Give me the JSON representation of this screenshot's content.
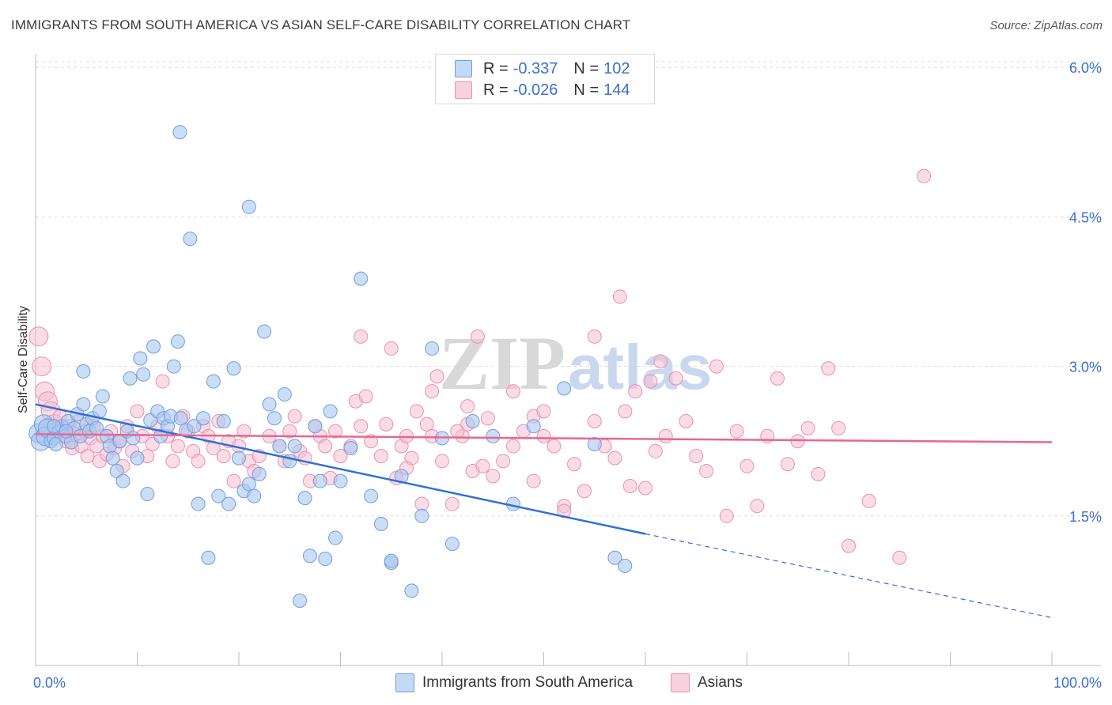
{
  "title": "IMMIGRANTS FROM SOUTH AMERICA VS ASIAN SELF-CARE DISABILITY CORRELATION CHART",
  "source": "Source: ZipAtlas.com",
  "watermark": {
    "zip": "ZIP",
    "atlas": "atlas"
  },
  "legend": {
    "r_label": "R =",
    "n_label": "N =",
    "rows": [
      {
        "r": "-0.337",
        "n": "102"
      },
      {
        "r": "-0.026",
        "n": "144"
      }
    ]
  },
  "colors": {
    "blue_fill": "#aac6f0",
    "blue_stroke": "#6f9de0",
    "blue_line": "#2f6fd6",
    "pink_fill": "#f6bfd1",
    "pink_stroke": "#ec8fae",
    "pink_line": "#e8678f",
    "axis_tick_color": "#3b6fd1",
    "grid": "#dddddd"
  },
  "chart_data": {
    "type": "scatter",
    "xlabel": "",
    "ylabel": "Self-Care Disability",
    "xlim": [
      0,
      100
    ],
    "ylim": [
      0,
      6.2
    ],
    "x_tick_labels": [
      "0.0%",
      "100.0%"
    ],
    "y_ticks": [
      1.5,
      3.0,
      4.5,
      6.0
    ],
    "y_tick_labels": [
      "1.5%",
      "3.0%",
      "4.5%",
      "6.0%"
    ],
    "grid": true,
    "legend_placement": "bottom",
    "series": [
      {
        "name": "Immigrants from South America",
        "color": "#aac6f0",
        "trend": {
          "x0": 0,
          "y0": 2.62,
          "x1": 60,
          "y1": 1.32,
          "dashed_to_x": 100,
          "dashed_to_y": 0.48
        },
        "points": [
          [
            0.3,
            2.33
          ],
          [
            0.5,
            2.25
          ],
          [
            0.8,
            2.42
          ],
          [
            1.0,
            2.3
          ],
          [
            1.2,
            2.38
          ],
          [
            1.5,
            2.25
          ],
          [
            1.8,
            2.28
          ],
          [
            2.0,
            2.22
          ],
          [
            2.3,
            2.35
          ],
          [
            2.6,
            2.4
          ],
          [
            2.9,
            2.3
          ],
          [
            3.2,
            2.45
          ],
          [
            3.5,
            2.24
          ],
          [
            3.8,
            2.38
          ],
          [
            4.1,
            2.52
          ],
          [
            4.4,
            2.3
          ],
          [
            4.7,
            2.62
          ],
          [
            5.0,
            2.42
          ],
          [
            5.3,
            2.35
          ],
          [
            5.6,
            2.48
          ],
          [
            6.0,
            2.38
          ],
          [
            6.3,
            2.55
          ],
          [
            6.6,
            2.7
          ],
          [
            7.0,
            2.3
          ],
          [
            7.3,
            2.2
          ],
          [
            7.6,
            2.08
          ],
          [
            8.0,
            1.95
          ],
          [
            8.3,
            2.25
          ],
          [
            8.6,
            1.85
          ],
          [
            9.0,
            2.35
          ],
          [
            9.3,
            2.88
          ],
          [
            9.6,
            2.28
          ],
          [
            10.0,
            2.08
          ],
          [
            10.3,
            3.08
          ],
          [
            10.6,
            2.92
          ],
          [
            11.0,
            1.72
          ],
          [
            11.3,
            2.46
          ],
          [
            11.6,
            3.2
          ],
          [
            12.0,
            2.55
          ],
          [
            12.3,
            2.3
          ],
          [
            12.6,
            2.48
          ],
          [
            13.0,
            2.4
          ],
          [
            13.3,
            2.5
          ],
          [
            13.6,
            3.0
          ],
          [
            14.0,
            3.25
          ],
          [
            14.3,
            2.48
          ],
          [
            14.8,
            2.36
          ],
          [
            15.2,
            4.28
          ],
          [
            15.6,
            2.4
          ],
          [
            16.0,
            1.62
          ],
          [
            16.5,
            2.48
          ],
          [
            17.0,
            1.08
          ],
          [
            17.5,
            2.85
          ],
          [
            18.0,
            1.7
          ],
          [
            18.5,
            2.45
          ],
          [
            19.0,
            1.62
          ],
          [
            19.5,
            2.98
          ],
          [
            20.0,
            2.08
          ],
          [
            20.5,
            1.75
          ],
          [
            21.0,
            1.82
          ],
          [
            21.5,
            1.7
          ],
          [
            22.0,
            1.92
          ],
          [
            22.5,
            3.35
          ],
          [
            23.0,
            2.62
          ],
          [
            23.5,
            2.48
          ],
          [
            24.0,
            2.2
          ],
          [
            24.5,
            2.72
          ],
          [
            25.0,
            2.05
          ],
          [
            25.5,
            2.2
          ],
          [
            26.0,
            0.65
          ],
          [
            26.5,
            1.68
          ],
          [
            27.0,
            1.1
          ],
          [
            27.5,
            2.4
          ],
          [
            28.0,
            1.85
          ],
          [
            28.5,
            1.07
          ],
          [
            29.0,
            2.55
          ],
          [
            29.5,
            1.28
          ],
          [
            30.0,
            1.85
          ],
          [
            31.0,
            2.18
          ],
          [
            32.0,
            3.88
          ],
          [
            33.0,
            1.7
          ],
          [
            34.0,
            1.42
          ],
          [
            35.0,
            1.03
          ],
          [
            36.0,
            1.9
          ],
          [
            37.0,
            0.75
          ],
          [
            38.0,
            1.5
          ],
          [
            39.0,
            3.18
          ],
          [
            40.0,
            2.28
          ],
          [
            41.0,
            1.22
          ],
          [
            43.0,
            2.45
          ],
          [
            45.0,
            2.3
          ],
          [
            47.0,
            1.62
          ],
          [
            49.0,
            2.4
          ],
          [
            52.0,
            2.78
          ],
          [
            55.0,
            2.22
          ],
          [
            57.0,
            1.08
          ],
          [
            58.0,
            1.0
          ],
          [
            14.2,
            5.35
          ],
          [
            21.0,
            4.6
          ],
          [
            4.7,
            2.95
          ],
          [
            1.8,
            2.4
          ],
          [
            35.0,
            1.05
          ],
          [
            3.0,
            2.35
          ]
        ]
      },
      {
        "name": "Asians",
        "color": "#f6bfd1",
        "trend": {
          "x0": 0,
          "y0": 2.32,
          "x1": 100,
          "y1": 2.24
        },
        "points": [
          [
            0.3,
            3.3
          ],
          [
            0.6,
            3.0
          ],
          [
            0.9,
            2.75
          ],
          [
            1.2,
            2.65
          ],
          [
            1.5,
            2.55
          ],
          [
            1.8,
            2.42
          ],
          [
            2.1,
            2.3
          ],
          [
            2.4,
            2.5
          ],
          [
            2.7,
            2.38
          ],
          [
            3.0,
            2.25
          ],
          [
            3.3,
            2.4
          ],
          [
            3.6,
            2.18
          ],
          [
            3.9,
            2.32
          ],
          [
            4.2,
            2.45
          ],
          [
            4.5,
            2.2
          ],
          [
            4.8,
            2.35
          ],
          [
            5.1,
            2.1
          ],
          [
            5.4,
            2.28
          ],
          [
            5.7,
            2.4
          ],
          [
            6.0,
            2.2
          ],
          [
            6.3,
            2.05
          ],
          [
            6.6,
            2.3
          ],
          [
            7.0,
            2.12
          ],
          [
            7.4,
            2.35
          ],
          [
            7.8,
            2.18
          ],
          [
            8.2,
            2.25
          ],
          [
            8.6,
            2.0
          ],
          [
            9.0,
            2.4
          ],
          [
            9.5,
            2.15
          ],
          [
            10.0,
            2.55
          ],
          [
            10.5,
            2.3
          ],
          [
            11.0,
            2.1
          ],
          [
            11.5,
            2.22
          ],
          [
            12.0,
            2.4
          ],
          [
            12.5,
            2.85
          ],
          [
            13.0,
            2.3
          ],
          [
            13.5,
            2.05
          ],
          [
            14.0,
            2.2
          ],
          [
            14.5,
            2.5
          ],
          [
            15.0,
            2.35
          ],
          [
            15.5,
            2.15
          ],
          [
            16.0,
            2.05
          ],
          [
            16.5,
            2.4
          ],
          [
            17.0,
            2.3
          ],
          [
            17.5,
            2.18
          ],
          [
            18.0,
            2.45
          ],
          [
            18.5,
            2.1
          ],
          [
            19.0,
            2.25
          ],
          [
            19.5,
            1.85
          ],
          [
            20.0,
            2.2
          ],
          [
            20.5,
            2.35
          ],
          [
            21.0,
            2.05
          ],
          [
            21.5,
            1.95
          ],
          [
            22.0,
            2.1
          ],
          [
            23.0,
            2.3
          ],
          [
            24.0,
            2.2
          ],
          [
            24.5,
            2.05
          ],
          [
            25.0,
            2.35
          ],
          [
            25.5,
            2.5
          ],
          [
            26.0,
            2.15
          ],
          [
            26.5,
            2.08
          ],
          [
            27.0,
            1.85
          ],
          [
            27.5,
            2.4
          ],
          [
            28.0,
            2.3
          ],
          [
            28.5,
            2.2
          ],
          [
            29.0,
            1.88
          ],
          [
            29.5,
            2.35
          ],
          [
            30.0,
            2.1
          ],
          [
            31.0,
            2.2
          ],
          [
            31.5,
            2.65
          ],
          [
            32.0,
            2.4
          ],
          [
            32.5,
            2.7
          ],
          [
            33.0,
            2.25
          ],
          [
            34.0,
            2.1
          ],
          [
            34.5,
            2.42
          ],
          [
            35.0,
            3.18
          ],
          [
            35.5,
            1.88
          ],
          [
            36.0,
            2.2
          ],
          [
            36.5,
            2.3
          ],
          [
            37.0,
            2.08
          ],
          [
            37.5,
            2.55
          ],
          [
            38.0,
            1.62
          ],
          [
            38.5,
            2.42
          ],
          [
            39.0,
            2.3
          ],
          [
            39.5,
            2.9
          ],
          [
            40.0,
            2.05
          ],
          [
            41.0,
            1.62
          ],
          [
            42.0,
            2.3
          ],
          [
            42.5,
            2.42
          ],
          [
            43.0,
            1.95
          ],
          [
            44.0,
            2.0
          ],
          [
            45.0,
            1.9
          ],
          [
            46.0,
            2.05
          ],
          [
            47.0,
            2.2
          ],
          [
            48.0,
            2.35
          ],
          [
            49.0,
            1.85
          ],
          [
            50.0,
            2.3
          ],
          [
            51.0,
            2.2
          ],
          [
            52.0,
            1.6
          ],
          [
            53.0,
            2.02
          ],
          [
            54.0,
            1.75
          ],
          [
            55.0,
            2.45
          ],
          [
            56.0,
            2.2
          ],
          [
            57.0,
            2.08
          ],
          [
            58.0,
            2.55
          ],
          [
            59.0,
            2.75
          ],
          [
            60.0,
            1.78
          ],
          [
            61.0,
            2.15
          ],
          [
            62.0,
            2.3
          ],
          [
            63.0,
            2.88
          ],
          [
            64.0,
            2.45
          ],
          [
            65.0,
            2.1
          ],
          [
            66.0,
            1.95
          ],
          [
            67.0,
            3.0
          ],
          [
            68.0,
            1.5
          ],
          [
            69.0,
            2.35
          ],
          [
            70.0,
            2.0
          ],
          [
            71.0,
            1.6
          ],
          [
            72.0,
            2.3
          ],
          [
            73.0,
            2.88
          ],
          [
            74.0,
            2.02
          ],
          [
            75.0,
            2.25
          ],
          [
            76.0,
            2.38
          ],
          [
            77.0,
            1.92
          ],
          [
            78.0,
            2.98
          ],
          [
            79.0,
            2.38
          ],
          [
            80.0,
            1.2
          ],
          [
            82.0,
            1.65
          ],
          [
            85.0,
            1.08
          ],
          [
            87.4,
            4.91
          ],
          [
            57.5,
            3.7
          ],
          [
            43.5,
            3.3
          ],
          [
            55.0,
            3.3
          ],
          [
            61.5,
            3.05
          ],
          [
            60.5,
            2.85
          ],
          [
            32.0,
            3.3
          ],
          [
            39.0,
            2.75
          ],
          [
            42.5,
            2.6
          ],
          [
            47.0,
            2.75
          ],
          [
            49.0,
            2.5
          ],
          [
            52.0,
            1.55
          ],
          [
            50.0,
            2.55
          ],
          [
            36.5,
            1.98
          ],
          [
            41.5,
            2.35
          ],
          [
            58.5,
            1.8
          ],
          [
            44.5,
            2.48
          ]
        ]
      }
    ]
  },
  "bottom_legend": [
    "Immigrants from South America",
    "Asians"
  ]
}
